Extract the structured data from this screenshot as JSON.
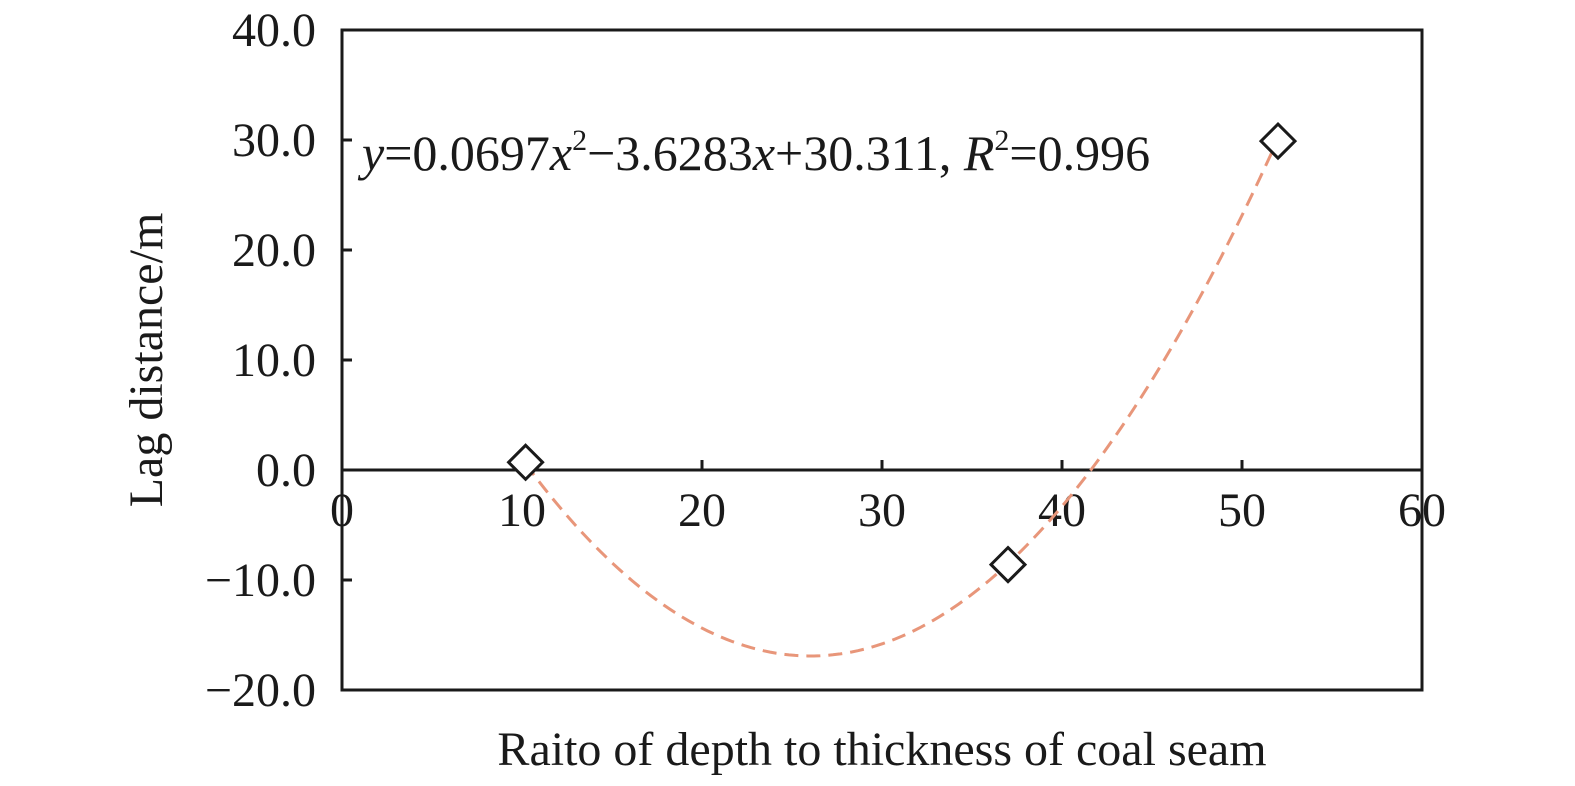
{
  "chart_data": {
    "type": "scatter",
    "xlabel": "Raito of depth to thickness of coal seam",
    "ylabel": "Lag distance/m",
    "xlim": [
      0,
      60
    ],
    "ylim": [
      -20,
      40
    ],
    "x_ticks": [
      "0",
      "10",
      "20",
      "30",
      "40",
      "50",
      "60"
    ],
    "y_ticks": [
      "40.0",
      "30.0",
      "20.0",
      "10.0",
      "0.0",
      "−10.0",
      "−20.0"
    ],
    "x_tick_values": [
      0,
      10,
      20,
      30,
      40,
      50,
      60
    ],
    "y_tick_values": [
      40,
      30,
      20,
      10,
      0,
      -10,
      -20
    ],
    "grid": false,
    "series": [
      {
        "marker": "diamond",
        "x": [
          10.2,
          37,
          52
        ],
        "y": [
          0.7,
          -8.6,
          29.9
        ],
        "color": "#1a1a1a"
      }
    ],
    "trendline": {
      "kind": "polynomial",
      "a": 0.0697,
      "b": -3.6283,
      "c": 30.311,
      "x_range": [
        10.2,
        52
      ],
      "color": "#e8967a",
      "style": "dashed"
    },
    "annotation": {
      "y_var": "y",
      "eq_1": "=0.0697",
      "x_var_1": "x",
      "exp_1": "2",
      "eq_2": "−3.6283",
      "x_var_2": "x",
      "eq_3": "+30.311, ",
      "r_var": "R",
      "exp_2": "2",
      "eq_4": "=0.996"
    }
  }
}
